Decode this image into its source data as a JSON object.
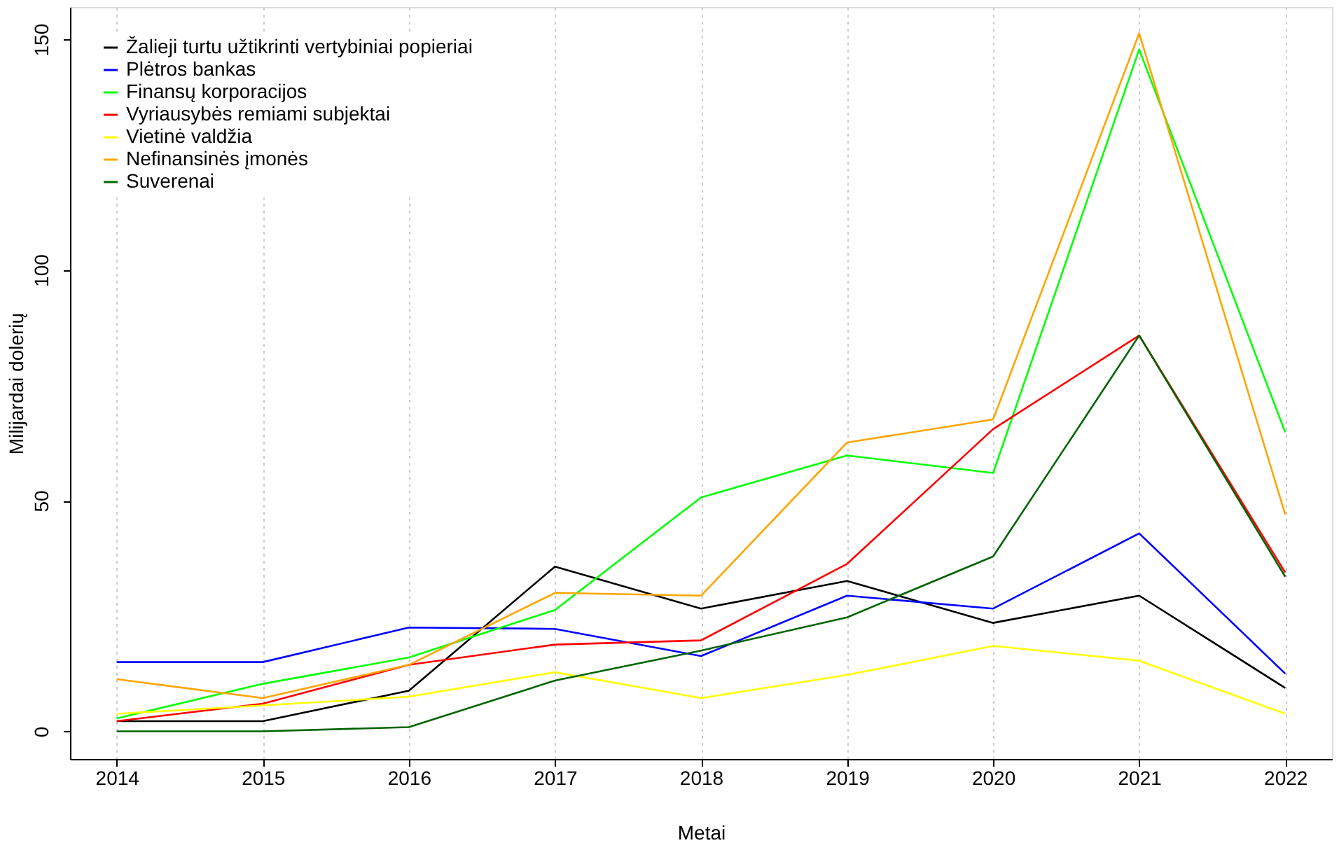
{
  "chart_data": {
    "type": "line",
    "xlabel": "Metai",
    "ylabel": "Milijardai dolerių",
    "x": [
      2014,
      2015,
      2016,
      2017,
      2018,
      2019,
      2020,
      2021,
      2022
    ],
    "xlim": [
      2013.68,
      2022.32
    ],
    "xticks": [
      2014,
      2015,
      2016,
      2017,
      2018,
      2019,
      2020,
      2021,
      2022
    ],
    "ylim": [
      -6,
      157
    ],
    "yticks": [
      0,
      50,
      100,
      150
    ],
    "grid": "x",
    "legend": "top left",
    "line_style": "solid",
    "series": [
      {
        "name": "Žalieji turtu užtikrinti vertybiniai popieriai",
        "color": "#000000",
        "values": [
          2.2,
          2.2,
          8.8,
          35.7,
          26.6,
          32.6,
          23.5,
          29.4,
          9.4
        ]
      },
      {
        "name": "Plėtros bankas",
        "color": "#0000ff",
        "values": [
          15,
          15,
          22.5,
          22.2,
          16.3,
          29.4,
          26.6,
          42.9,
          12.5
        ]
      },
      {
        "name": "Finansų korporacijos",
        "color": "#00ff00",
        "values": [
          2.8,
          10.3,
          16,
          26.3,
          50.7,
          59.8,
          56,
          147.8,
          64.8
        ]
      },
      {
        "name": "Vyriausybės remiami subjektai",
        "color": "#ff0000",
        "values": [
          2.2,
          6,
          14.4,
          18.8,
          19.7,
          36.3,
          65.5,
          85.8,
          34.4
        ]
      },
      {
        "name": "Vietinė valdžia",
        "color": "#ffff00",
        "values": [
          3.8,
          5.6,
          7.5,
          12.8,
          7.2,
          12.2,
          18.5,
          15.3,
          3.8
        ]
      },
      {
        "name": "Nefinansinės įmonės",
        "color": "#ffa500",
        "values": [
          11.3,
          7.2,
          14.4,
          30,
          29.4,
          62.6,
          67.6,
          151.3,
          47
        ]
      },
      {
        "name": "Suverenai",
        "color": "#006400",
        "values": [
          0,
          0,
          0.9,
          11,
          17.5,
          24.7,
          37.9,
          85.8,
          33.5
        ]
      }
    ]
  }
}
